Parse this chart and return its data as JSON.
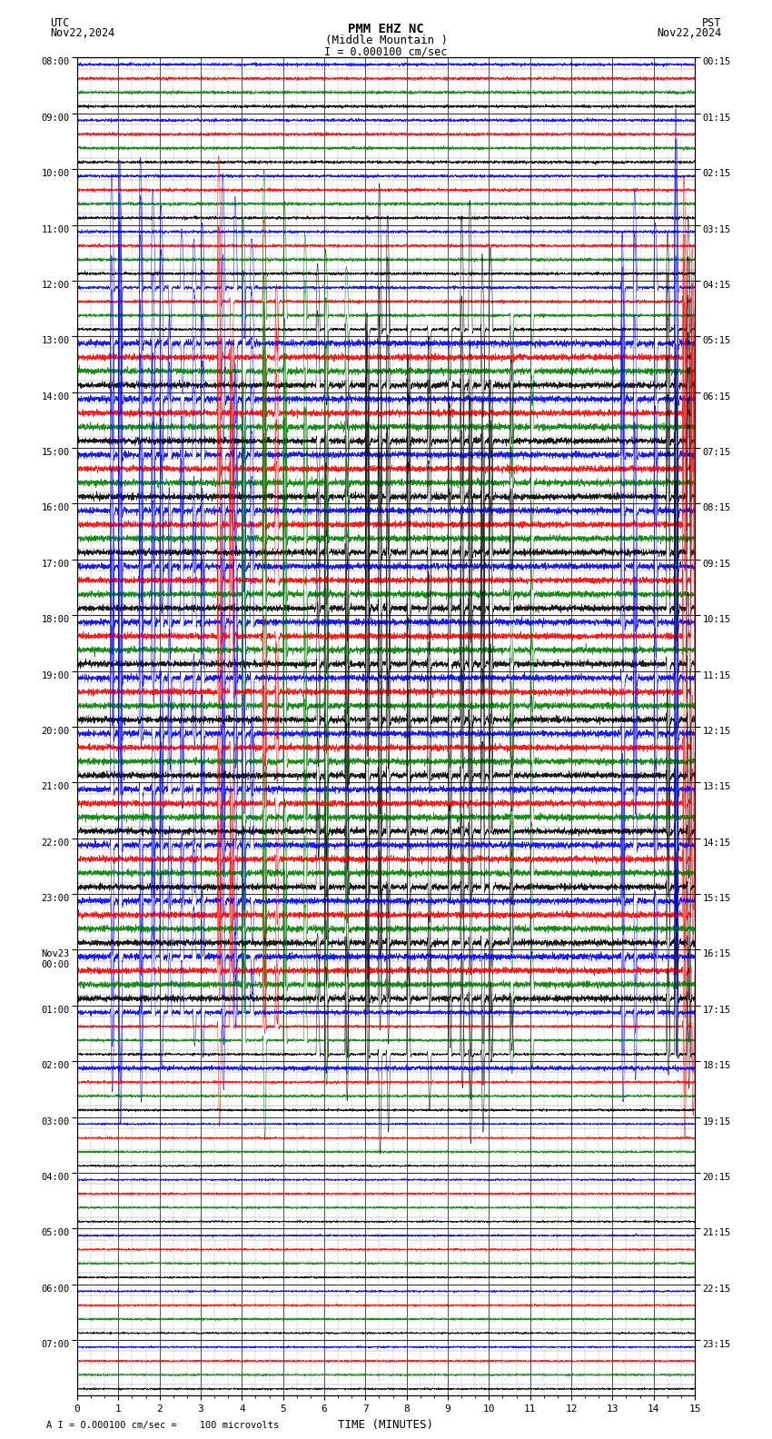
{
  "title_line1": "PMM EHZ NC",
  "title_line2": "(Middle Mountain )",
  "scale_label": "I = 0.000100 cm/sec",
  "utc_label": "UTC",
  "utc_date": "Nov22,2024",
  "pst_label": "PST",
  "pst_date": "Nov22,2024",
  "bottom_label": "A I = 0.000100 cm/sec =    100 microvolts",
  "xlabel": "TIME (MINUTES)",
  "left_yticks": [
    "08:00",
    "09:00",
    "10:00",
    "11:00",
    "12:00",
    "13:00",
    "14:00",
    "15:00",
    "16:00",
    "17:00",
    "18:00",
    "19:00",
    "20:00",
    "21:00",
    "22:00",
    "23:00",
    "Nov23\n00:00",
    "01:00",
    "02:00",
    "03:00",
    "04:00",
    "05:00",
    "06:00",
    "07:00"
  ],
  "right_yticks": [
    "00:15",
    "01:15",
    "02:15",
    "03:15",
    "04:15",
    "05:15",
    "06:15",
    "07:15",
    "08:15",
    "09:15",
    "10:15",
    "11:15",
    "12:15",
    "13:15",
    "14:15",
    "15:15",
    "16:15",
    "17:15",
    "18:15",
    "19:15",
    "20:15",
    "21:15",
    "22:15",
    "23:15"
  ],
  "xlim": [
    0,
    15
  ],
  "n_rows": 24,
  "bg_color": "#ffffff",
  "grid_color": "#888888",
  "figsize": [
    8.5,
    15.84
  ],
  "dpi": 100,
  "n_subrows": 4,
  "subrow_colors": [
    "blue",
    "red",
    "green",
    "black"
  ],
  "subrow_offsets": [
    0.125,
    0.375,
    0.625,
    0.875
  ]
}
